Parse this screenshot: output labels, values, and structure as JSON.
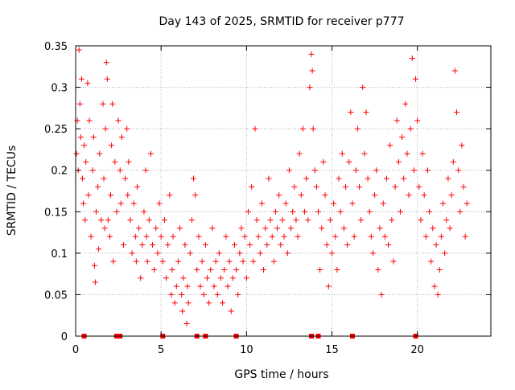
{
  "chart_data": {
    "type": "scatter",
    "title": "Day 143 of 2025, SRMTID for receiver p777",
    "xlabel": "GPS time / hours",
    "ylabel": "SRMTID / TECUs",
    "xlim": [
      0,
      24.3
    ],
    "ylim": [
      0,
      0.35
    ],
    "x_ticks": [
      0,
      5,
      10,
      15,
      20
    ],
    "x_tick_labels": [
      "0",
      "5",
      "10",
      "15",
      "20"
    ],
    "y_ticks": [
      0,
      0.05,
      0.1,
      0.15,
      0.2,
      0.25,
      0.3,
      0.35
    ],
    "y_tick_labels": [
      "0",
      "0.05",
      "0.1",
      "0.15",
      "0.2",
      "0.25",
      "0.3",
      "0.35"
    ],
    "grid": true,
    "marker": "+",
    "marker_color": "#ff0000",
    "series": [
      {
        "name": "SRMTID",
        "points": [
          [
            0.05,
            0.22
          ],
          [
            0.1,
            0.26
          ],
          [
            0.15,
            0.2
          ],
          [
            0.2,
            0.345
          ],
          [
            0.25,
            0.28
          ],
          [
            0.3,
            0.24
          ],
          [
            0.35,
            0.31
          ],
          [
            0.4,
            0.19
          ],
          [
            0.45,
            0.16
          ],
          [
            0.5,
            0.23
          ],
          [
            0.55,
            0.14
          ],
          [
            0.6,
            0.21
          ],
          [
            0.7,
            0.305
          ],
          [
            0.75,
            0.17
          ],
          [
            0.8,
            0.26
          ],
          [
            0.9,
            0.12
          ],
          [
            1.0,
            0.2
          ],
          [
            1.05,
            0.24
          ],
          [
            1.1,
            0.085
          ],
          [
            1.15,
            0.065
          ],
          [
            1.2,
            0.15
          ],
          [
            1.3,
            0.18
          ],
          [
            1.35,
            0.105
          ],
          [
            1.4,
            0.22
          ],
          [
            1.5,
            0.14
          ],
          [
            1.6,
            0.28
          ],
          [
            1.65,
            0.19
          ],
          [
            1.7,
            0.13
          ],
          [
            1.75,
            0.25
          ],
          [
            1.8,
            0.33
          ],
          [
            1.85,
            0.31
          ],
          [
            1.9,
            0.14
          ],
          [
            2.0,
            0.12
          ],
          [
            2.05,
            0.17
          ],
          [
            2.1,
            0.23
          ],
          [
            2.15,
            0.28
          ],
          [
            2.2,
            0.09
          ],
          [
            2.3,
            0.21
          ],
          [
            2.4,
            0.15
          ],
          [
            2.5,
            0.26
          ],
          [
            2.6,
            0.2
          ],
          [
            2.65,
            0.16
          ],
          [
            2.7,
            0.24
          ],
          [
            2.8,
            0.11
          ],
          [
            2.9,
            0.19
          ],
          [
            3.0,
            0.25
          ],
          [
            3.05,
            0.17
          ],
          [
            3.1,
            0.21
          ],
          [
            3.2,
            0.14
          ],
          [
            3.3,
            0.1
          ],
          [
            3.4,
            0.16
          ],
          [
            3.5,
            0.12
          ],
          [
            3.55,
            0.09
          ],
          [
            3.6,
            0.18
          ],
          [
            3.7,
            0.13
          ],
          [
            3.8,
            0.07
          ],
          [
            3.9,
            0.11
          ],
          [
            4.0,
            0.15
          ],
          [
            4.1,
            0.2
          ],
          [
            4.15,
            0.12
          ],
          [
            4.2,
            0.09
          ],
          [
            4.3,
            0.14
          ],
          [
            4.4,
            0.22
          ],
          [
            4.5,
            0.11
          ],
          [
            4.6,
            0.08
          ],
          [
            4.7,
            0.13
          ],
          [
            4.8,
            0.1
          ],
          [
            4.9,
            0.16
          ],
          [
            5.0,
            0.12
          ],
          [
            5.1,
            0.09
          ],
          [
            5.2,
            0.14
          ],
          [
            5.3,
            0.07
          ],
          [
            5.4,
            0.11
          ],
          [
            5.5,
            0.17
          ],
          [
            5.6,
            0.05
          ],
          [
            5.65,
            0.08
          ],
          [
            5.7,
            0.12
          ],
          [
            5.8,
            0.04
          ],
          [
            5.9,
            0.06
          ],
          [
            6.0,
            0.09
          ],
          [
            6.1,
            0.13
          ],
          [
            6.2,
            0.05
          ],
          [
            6.25,
            0.03
          ],
          [
            6.3,
            0.07
          ],
          [
            6.4,
            0.11
          ],
          [
            6.5,
            0.015
          ],
          [
            6.55,
            0.06
          ],
          [
            6.6,
            0.04
          ],
          [
            6.7,
            0.1
          ],
          [
            6.8,
            0.14
          ],
          [
            6.9,
            0.19
          ],
          [
            7.0,
            0.17
          ],
          [
            7.1,
            0.08
          ],
          [
            7.2,
            0.12
          ],
          [
            7.3,
            0.06
          ],
          [
            7.4,
            0.09
          ],
          [
            7.5,
            0.05
          ],
          [
            7.6,
            0.11
          ],
          [
            7.7,
            0.07
          ],
          [
            7.8,
            0.04
          ],
          [
            7.9,
            0.08
          ],
          [
            8.0,
            0.13
          ],
          [
            8.1,
            0.06
          ],
          [
            8.2,
            0.09
          ],
          [
            8.3,
            0.05
          ],
          [
            8.4,
            0.1
          ],
          [
            8.5,
            0.07
          ],
          [
            8.6,
            0.04
          ],
          [
            8.7,
            0.08
          ],
          [
            8.8,
            0.12
          ],
          [
            8.9,
            0.06
          ],
          [
            9.0,
            0.09
          ],
          [
            9.1,
            0.03
          ],
          [
            9.2,
            0.07
          ],
          [
            9.3,
            0.11
          ],
          [
            9.4,
            0.08
          ],
          [
            9.5,
            0.05
          ],
          [
            9.6,
            0.1
          ],
          [
            9.7,
            0.13
          ],
          [
            9.8,
            0.09
          ],
          [
            9.9,
            0.12
          ],
          [
            10.0,
            0.07
          ],
          [
            10.1,
            0.15
          ],
          [
            10.2,
            0.11
          ],
          [
            10.3,
            0.18
          ],
          [
            10.4,
            0.09
          ],
          [
            10.5,
            0.25
          ],
          [
            10.6,
            0.14
          ],
          [
            10.7,
            0.12
          ],
          [
            10.8,
            0.1
          ],
          [
            10.9,
            0.16
          ],
          [
            11.0,
            0.08
          ],
          [
            11.1,
            0.13
          ],
          [
            11.2,
            0.11
          ],
          [
            11.3,
            0.19
          ],
          [
            11.4,
            0.14
          ],
          [
            11.5,
            0.12
          ],
          [
            11.6,
            0.09
          ],
          [
            11.7,
            0.15
          ],
          [
            11.8,
            0.13
          ],
          [
            11.9,
            0.17
          ],
          [
            12.0,
            0.11
          ],
          [
            12.1,
            0.14
          ],
          [
            12.2,
            0.12
          ],
          [
            12.3,
            0.16
          ],
          [
            12.4,
            0.1
          ],
          [
            12.5,
            0.2
          ],
          [
            12.6,
            0.13
          ],
          [
            12.7,
            0.15
          ],
          [
            12.8,
            0.18
          ],
          [
            12.9,
            0.14
          ],
          [
            13.0,
            0.12
          ],
          [
            13.1,
            0.22
          ],
          [
            13.2,
            0.17
          ],
          [
            13.3,
            0.25
          ],
          [
            13.4,
            0.15
          ],
          [
            13.5,
            0.19
          ],
          [
            13.6,
            0.14
          ],
          [
            13.7,
            0.3
          ],
          [
            13.8,
            0.34
          ],
          [
            13.85,
            0.32
          ],
          [
            13.9,
            0.25
          ],
          [
            14.0,
            0.2
          ],
          [
            14.1,
            0.18
          ],
          [
            14.2,
            0.15
          ],
          [
            14.3,
            0.08
          ],
          [
            14.4,
            0.13
          ],
          [
            14.5,
            0.21
          ],
          [
            14.6,
            0.17
          ],
          [
            14.7,
            0.11
          ],
          [
            14.8,
            0.06
          ],
          [
            14.9,
            0.14
          ],
          [
            15.0,
            0.1
          ],
          [
            15.1,
            0.16
          ],
          [
            15.2,
            0.12
          ],
          [
            15.3,
            0.08
          ],
          [
            15.4,
            0.19
          ],
          [
            15.5,
            0.15
          ],
          [
            15.6,
            0.22
          ],
          [
            15.7,
            0.13
          ],
          [
            15.8,
            0.18
          ],
          [
            15.9,
            0.11
          ],
          [
            16.0,
            0.21
          ],
          [
            16.1,
            0.27
          ],
          [
            16.2,
            0.16
          ],
          [
            16.3,
            0.12
          ],
          [
            16.4,
            0.2
          ],
          [
            16.5,
            0.25
          ],
          [
            16.6,
            0.18
          ],
          [
            16.7,
            0.14
          ],
          [
            16.8,
            0.3
          ],
          [
            16.9,
            0.22
          ],
          [
            17.0,
            0.27
          ],
          [
            17.1,
            0.19
          ],
          [
            17.2,
            0.15
          ],
          [
            17.3,
            0.12
          ],
          [
            17.4,
            0.1
          ],
          [
            17.5,
            0.17
          ],
          [
            17.6,
            0.2
          ],
          [
            17.7,
            0.08
          ],
          [
            17.8,
            0.13
          ],
          [
            17.9,
            0.05
          ],
          [
            18.0,
            0.16
          ],
          [
            18.1,
            0.12
          ],
          [
            18.2,
            0.19
          ],
          [
            18.3,
            0.11
          ],
          [
            18.4,
            0.23
          ],
          [
            18.5,
            0.14
          ],
          [
            18.6,
            0.09
          ],
          [
            18.7,
            0.18
          ],
          [
            18.8,
            0.26
          ],
          [
            18.9,
            0.21
          ],
          [
            19.0,
            0.15
          ],
          [
            19.1,
            0.24
          ],
          [
            19.2,
            0.19
          ],
          [
            19.3,
            0.28
          ],
          [
            19.4,
            0.22
          ],
          [
            19.5,
            0.17
          ],
          [
            19.6,
            0.25
          ],
          [
            19.7,
            0.335
          ],
          [
            19.8,
            0.2
          ],
          [
            19.9,
            0.31
          ],
          [
            20.0,
            0.26
          ],
          [
            20.1,
            0.18
          ],
          [
            20.2,
            0.14
          ],
          [
            20.3,
            0.22
          ],
          [
            20.4,
            0.17
          ],
          [
            20.5,
            0.12
          ],
          [
            20.6,
            0.2
          ],
          [
            20.7,
            0.15
          ],
          [
            20.8,
            0.09
          ],
          [
            20.9,
            0.13
          ],
          [
            21.0,
            0.06
          ],
          [
            21.1,
            0.11
          ],
          [
            21.2,
            0.05
          ],
          [
            21.3,
            0.08
          ],
          [
            21.4,
            0.12
          ],
          [
            21.5,
            0.16
          ],
          [
            21.6,
            0.1
          ],
          [
            21.7,
            0.14
          ],
          [
            21.8,
            0.19
          ],
          [
            21.9,
            0.13
          ],
          [
            22.0,
            0.17
          ],
          [
            22.1,
            0.21
          ],
          [
            22.2,
            0.32
          ],
          [
            22.3,
            0.27
          ],
          [
            22.4,
            0.2
          ],
          [
            22.5,
            0.15
          ],
          [
            22.6,
            0.23
          ],
          [
            22.7,
            0.18
          ],
          [
            22.8,
            0.12
          ],
          [
            22.9,
            0.16
          ]
        ]
      }
    ],
    "zero_markers_x": [
      0.5,
      2.4,
      2.6,
      5.1,
      7.1,
      7.6,
      9.4,
      13.8,
      14.2,
      16.2,
      19.9
    ]
  }
}
